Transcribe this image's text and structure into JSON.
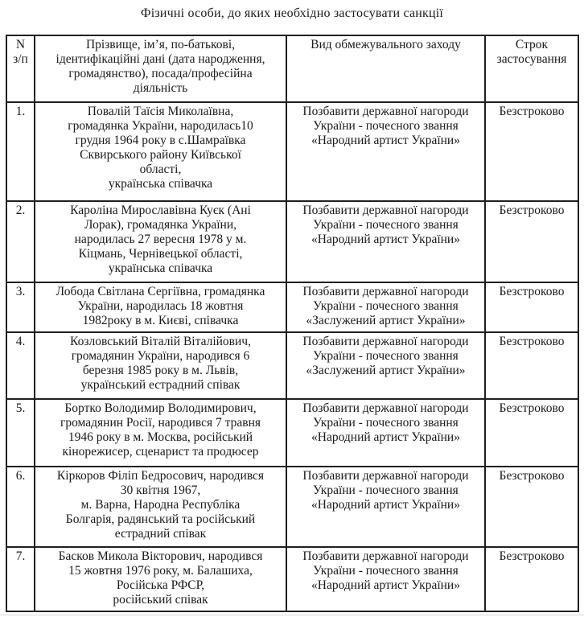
{
  "document": {
    "title": "Фізичні особи, до яких необхідно застосувати санкції"
  },
  "table": {
    "headers": {
      "num": "N\nз/п",
      "person": "Прізвище, ім’я, по-батькові,\nідентифікаційні дані (дата народження,\nгромадянство), посада/професійна\nдіяльність",
      "measure": "Вид обмежувального заходу",
      "term": "Строк\nзастосування"
    },
    "rows": [
      {
        "num": "1.",
        "person": "Повалій Таїсія Миколаївна,\nгромадянка України, народилась10\nгрудня 1964 року в с.Шамраївка\nСквирського району Київської\nобласті,\nукраїнська співачка",
        "measure": "Позбавити державної нагороди\nУкраїни - почесного звання\n«Народний артист України»",
        "term": "Безстроково"
      },
      {
        "num": "2.",
        "person": "Кароліна Мирославівна Куєк (Ані\nЛорак), громадянка України,\nнародилась 27 вересня 1978 у м.\nКіцмань, Чернівецької області,\nукраїнська співачка",
        "measure": "Позбавити державної нагороди\nУкраїни - почесного звання\n«Народний артист України»",
        "term": "Безстроково"
      },
      {
        "num": "3.",
        "person": "Лобода Світлана Сергіївна, громадянка\nУкраїни, народилась 18 жовтня\n1982року в м. Києві, співачка",
        "measure": "Позбавити державної нагороди\nУкраїни - почесного звання\n«Заслужений артист України»",
        "term": "Безстроково"
      },
      {
        "num": "4.",
        "person": "Козловський Віталій Віталійович,\nгромадянин України, народився 6\nберезня 1985 року в м. Львів,\nукраїнський естрадний співак",
        "measure": "Позбавити державної нагороди\nУкраїни - почесного звання\n«Заслужений артист України»",
        "term": "Безстроково"
      },
      {
        "num": "5.",
        "person": "Бортко Володимир Володимирович,\nгромадянин Росії, народився 7 травня\n1946 року в м. Москва, російський\nкінорежисер, сценарист та продюсер",
        "measure": "Позбавити державної нагороди\nУкраїни - почесного звання\n«Народний артист України»",
        "term": "Безстроково"
      },
      {
        "num": "6.",
        "person": "Кіркоров Філіп Бедросович, народився\n30 квітня 1967,\nм. Варна, Народна Республіка\nБолгарія, радянський та російський\nестрадний співак",
        "measure": "Позбавити державної нагороди\nУкраїни - почесного звання\n«Народний артист України»",
        "term": "Безстроково"
      },
      {
        "num": "7.",
        "person": "Басков Микола Вікторович, народився\n15 жовтня 1976 року, м. Балашиха,\nРосійська РФСР,\nросійський співак",
        "measure": "Позбавити державної нагороди\nУкраїни - почесного звання\n«Народний артист України»",
        "term": "Безстроково"
      }
    ]
  },
  "colors": {
    "text": "#1a1a1a",
    "border": "#1f1f1f",
    "background": "#ffffff"
  }
}
